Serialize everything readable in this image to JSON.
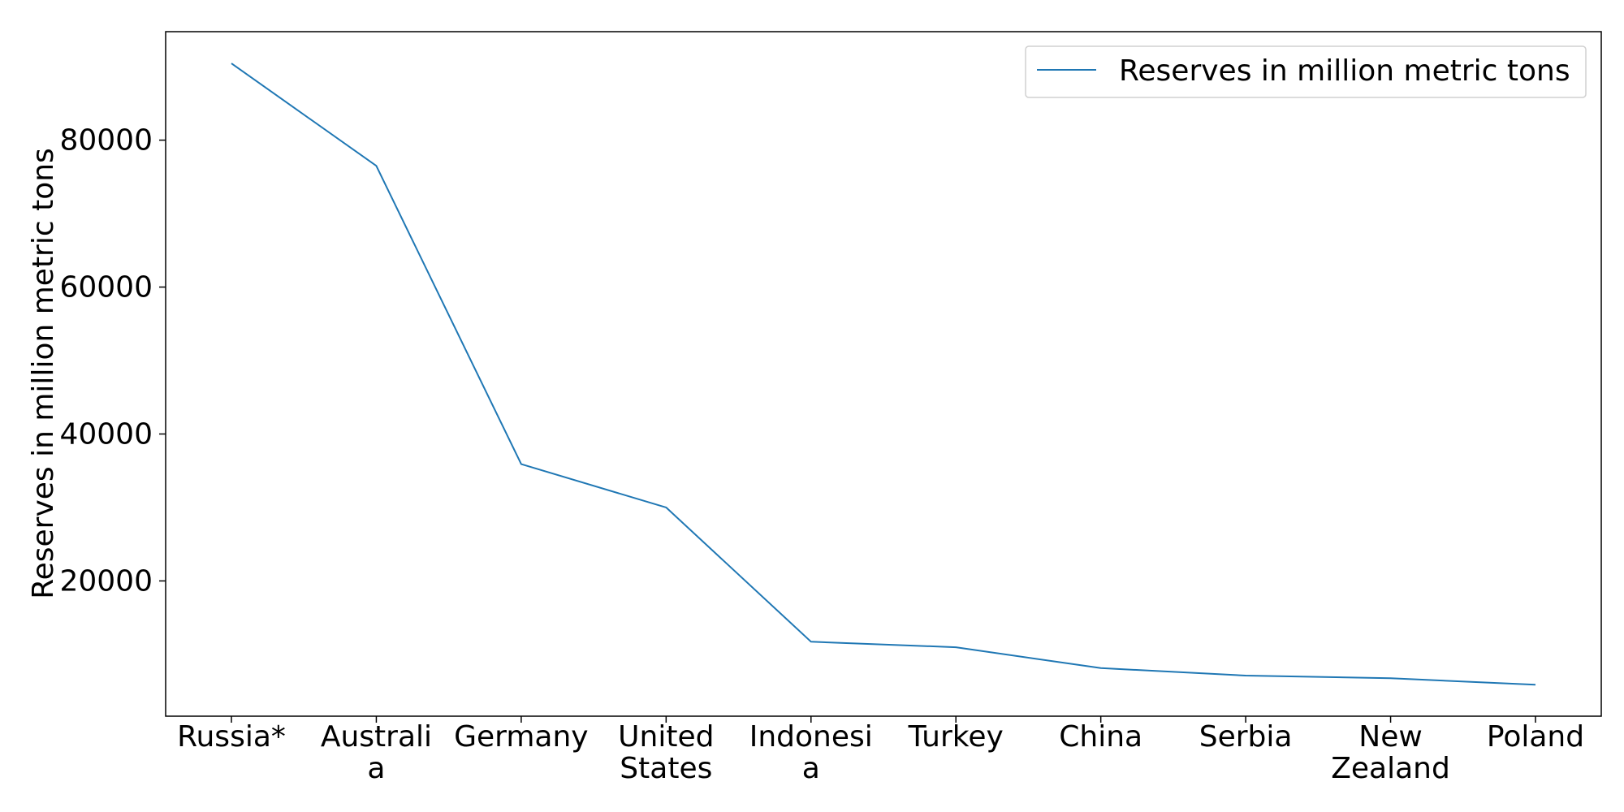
{
  "chart_data": {
    "type": "line",
    "categories": [
      "Russia*",
      "Australia",
      "Germany",
      "United States",
      "Indonesia",
      "Turkey",
      "China",
      "Serbia",
      "New Zealand",
      "Poland"
    ],
    "category_tick_lines": [
      [
        "Russia*"
      ],
      [
        "Australi",
        "a"
      ],
      [
        "Germany"
      ],
      [
        "United",
        "States"
      ],
      [
        "Indonesi",
        "a"
      ],
      [
        "Turkey"
      ],
      [
        "China"
      ],
      [
        "Serbia"
      ],
      [
        "New",
        "Zealand"
      ],
      [
        "Poland"
      ]
    ],
    "series": [
      {
        "name": "Reserves in million metric tons",
        "values": [
          90447,
          76508,
          35900,
          30003,
          11728,
          10975,
          8128,
          7112,
          6750,
          5865
        ],
        "color": "#1f77b4"
      }
    ],
    "ylabel": "Reserves in million metric tons",
    "xlabel": "",
    "title": "",
    "yticks": [
      20000,
      40000,
      60000,
      80000
    ],
    "ytick_labels": [
      "20000",
      "40000",
      "60000",
      "80000"
    ],
    "ylim": [
      1589,
      94764
    ],
    "legend_position": "top-right",
    "grid": false
  }
}
